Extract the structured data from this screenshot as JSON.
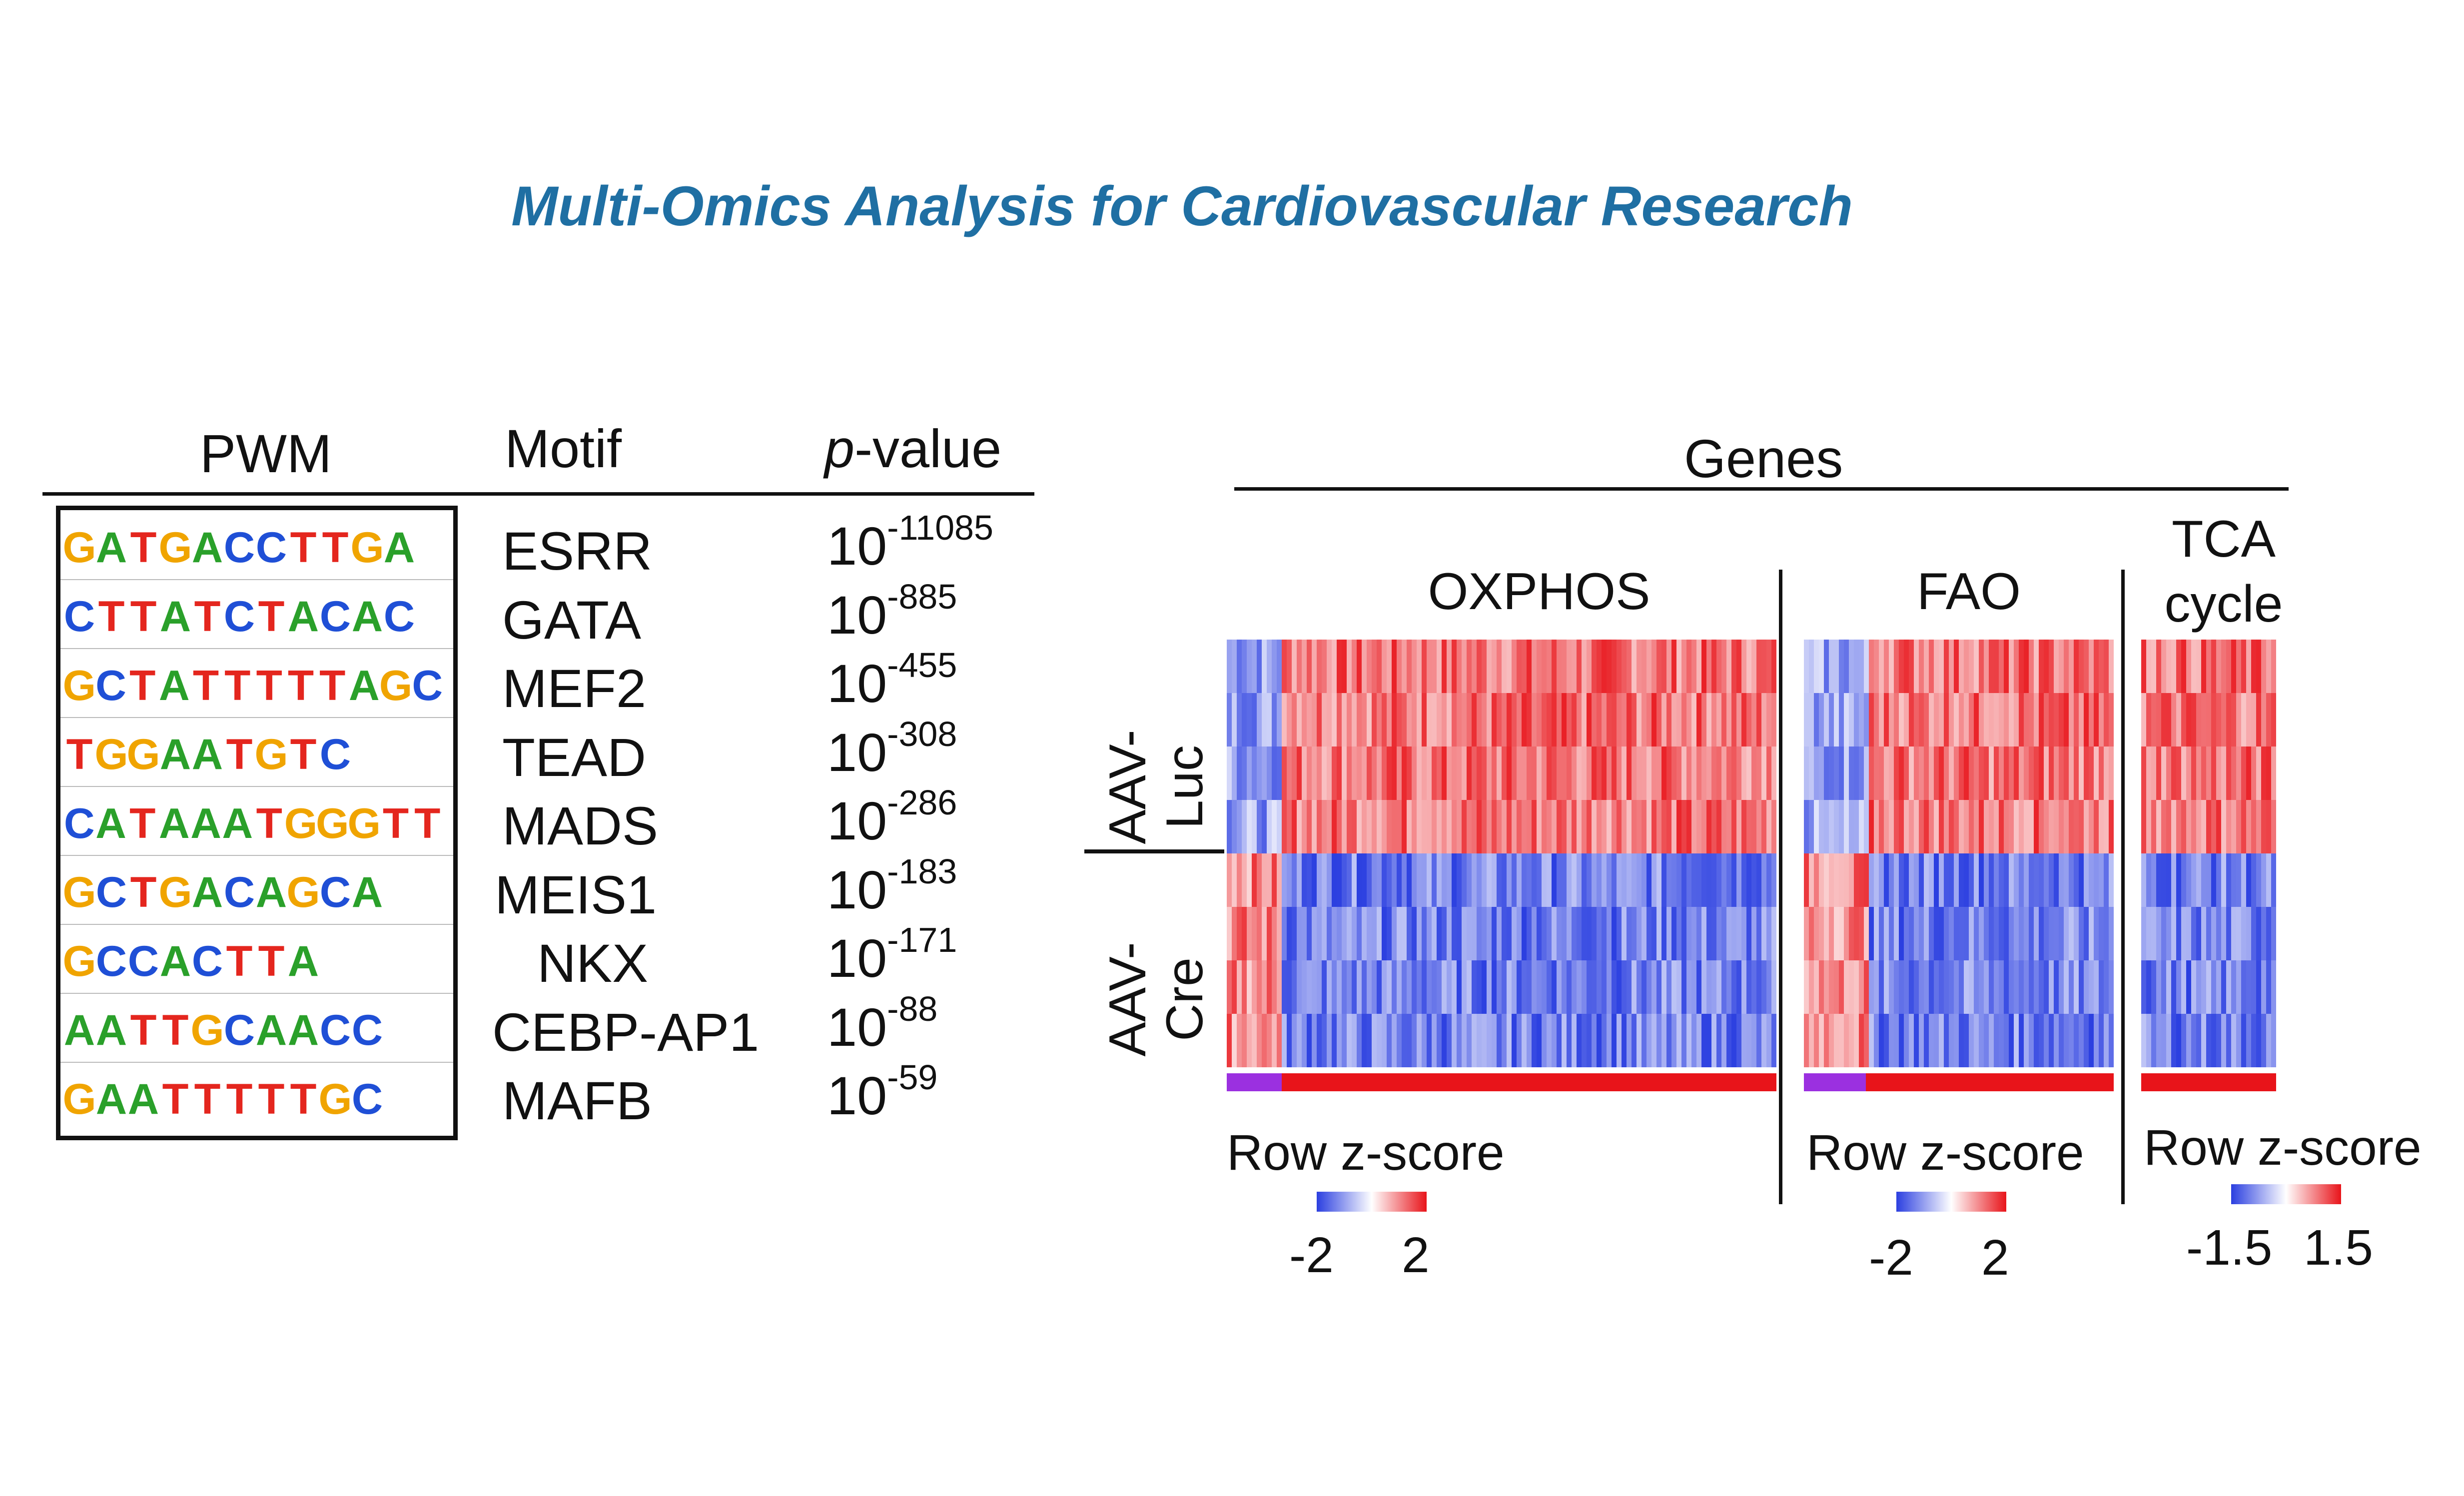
{
  "title": "Multi-Omics Analysis for Cardiovascular Research",
  "motif_table": {
    "headers": {
      "pwm": "PWM",
      "motif": "Motif",
      "p_prefix": "p",
      "p_suffix": "-value"
    },
    "rows": [
      {
        "pwm": "GATGACCTTGA",
        "motif": "ESRR",
        "base": "10",
        "exp": "-11085"
      },
      {
        "pwm": "CTTATCTACAC",
        "motif": "GATA",
        "base": "10",
        "exp": "-885"
      },
      {
        "pwm": "GCTATTTTTAGC",
        "motif": "MEF2",
        "base": "10",
        "exp": "-455"
      },
      {
        "pwm": "TGGAATGTC",
        "motif": "TEAD",
        "base": "10",
        "exp": "-308"
      },
      {
        "pwm": "CATAAATGGGTT",
        "motif": "MADS",
        "base": "10",
        "exp": "-286"
      },
      {
        "pwm": "GCTGACAGCA",
        "motif": "MEIS1",
        "base": "10",
        "exp": "-183"
      },
      {
        "pwm": "GCCACTTA",
        "motif": "NKX",
        "base": "10",
        "exp": "-171"
      },
      {
        "pwm": "AATTGCAACC",
        "motif": "CEBP-AP1",
        "base": "10",
        "exp": "-88"
      },
      {
        "pwm": "GAATTTTTGC",
        "motif": "MAFB",
        "base": "10",
        "exp": "-59"
      }
    ],
    "nucleotide_colors": {
      "A": "#2aa02a",
      "C": "#1f4fd6",
      "G": "#f0a400",
      "T": "#e4261e"
    }
  },
  "heatmap": {
    "genes_label": "Genes",
    "row_groups": [
      {
        "line1": "AAV-",
        "line2": "Luc"
      },
      {
        "line1": "AAV-",
        "line2": "Cre"
      }
    ],
    "sections": [
      {
        "label": "OXPHOS",
        "zscore_label": "Row z-score",
        "zmin": "-2",
        "zmax": "2"
      },
      {
        "label": "FAO",
        "zscore_label": "Row z-score",
        "zmin": "-2",
        "zmax": "2"
      },
      {
        "label_line1": "TCA",
        "label_line2": "cycle",
        "zscore_label": "Row z-score",
        "zmin": "-1.5",
        "zmax": "1.5"
      }
    ],
    "colors": {
      "low": "#2b3fe0",
      "mid": "#ffffff",
      "high": "#e8141a",
      "annotation_purple": "#9b30e0",
      "annotation_red": "#e8141a"
    }
  }
}
